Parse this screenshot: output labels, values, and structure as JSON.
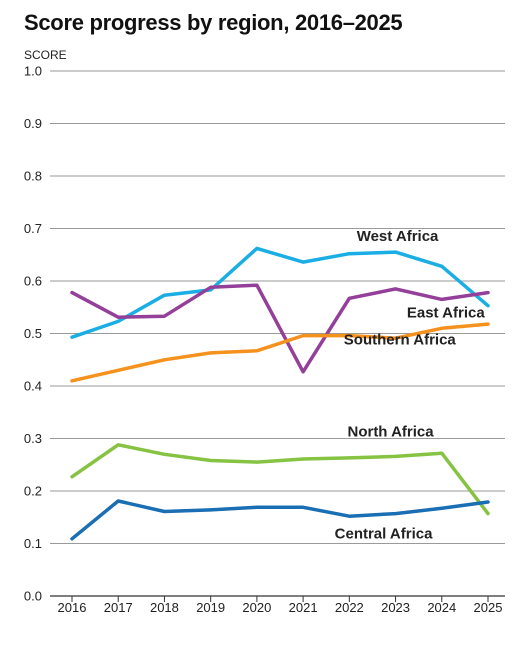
{
  "chart_data": {
    "type": "line",
    "title": "Score progress by region, 2016–2025",
    "xlabel": "",
    "ylabel": "SCORE",
    "x": [
      "2016",
      "2017",
      "2018",
      "2019",
      "2020",
      "2021",
      "2022",
      "2023",
      "2024",
      "2025"
    ],
    "ylim": [
      0,
      1.0
    ],
    "yticks": [
      "0.0",
      "0.1",
      "0.2",
      "0.3",
      "0.4",
      "0.5",
      "0.6",
      "0.7",
      "0.8",
      "0.9",
      "1.0"
    ],
    "grid": true,
    "series": [
      {
        "name": "West Africa",
        "color": "#1aaee5",
        "values": [
          0.493,
          0.523,
          0.573,
          0.583,
          0.662,
          0.636,
          0.652,
          0.655,
          0.628,
          0.553
        ]
      },
      {
        "name": "East Africa",
        "color": "#943f9a",
        "values": [
          0.578,
          0.531,
          0.533,
          0.588,
          0.592,
          0.427,
          0.567,
          0.585,
          0.565,
          0.578
        ]
      },
      {
        "name": "Southern Africa",
        "color": "#f5921e",
        "values": [
          0.41,
          0.43,
          0.45,
          0.463,
          0.467,
          0.496,
          0.496,
          0.491,
          0.51,
          0.518
        ]
      },
      {
        "name": "North Africa",
        "color": "#86c343",
        "values": [
          0.227,
          0.288,
          0.27,
          0.258,
          0.255,
          0.261,
          0.263,
          0.266,
          0.272,
          0.157
        ]
      },
      {
        "name": "Central Africa",
        "color": "#1a6eb4",
        "values": [
          0.109,
          0.181,
          0.161,
          0.164,
          0.169,
          0.169,
          0.152,
          0.157,
          0.167,
          0.179
        ]
      }
    ]
  }
}
